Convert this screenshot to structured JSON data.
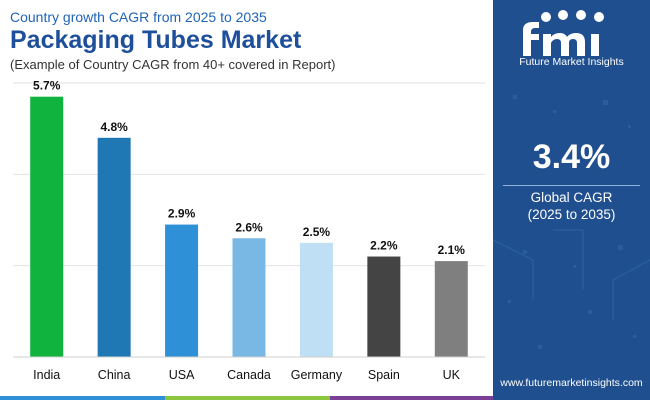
{
  "header": {
    "subtitle": "Country growth CAGR from 2025 to 2035",
    "title": "Packaging Tubes Market",
    "note": "(Example of Country CAGR from 40+ covered in Report)"
  },
  "chart_data": {
    "type": "bar",
    "title": "Packaging Tubes Market",
    "subtitle": "Country growth CAGR from 2025 to 2035",
    "categories": [
      "India",
      "China",
      "USA",
      "Canada",
      "Germany",
      "Spain",
      "UK"
    ],
    "values": [
      5.7,
      4.8,
      2.9,
      2.6,
      2.5,
      2.2,
      2.1
    ],
    "value_labels": [
      "5.7%",
      "4.8%",
      "2.9%",
      "2.6%",
      "2.5%",
      "2.2%",
      "2.1%"
    ],
    "colors": [
      "#0fb33d",
      "#1f78b4",
      "#2e90d6",
      "#79b8e4",
      "#bfe0f4",
      "#444444",
      "#7f7f7f"
    ],
    "xlabel": "",
    "ylabel": "",
    "ylim": [
      0,
      6
    ],
    "grid": true,
    "legend": "none"
  },
  "sidebar": {
    "logo_text": "Future Market Insights",
    "global_cagr_value": "3.4%",
    "global_cagr_label": "Global CAGR",
    "global_cagr_period": "(2025 to 2035)",
    "website": "www.futuremarketinsights.com"
  },
  "footer": {
    "colors": [
      "#2e90d6",
      "#8dc63f",
      "#7b3f98"
    ]
  }
}
